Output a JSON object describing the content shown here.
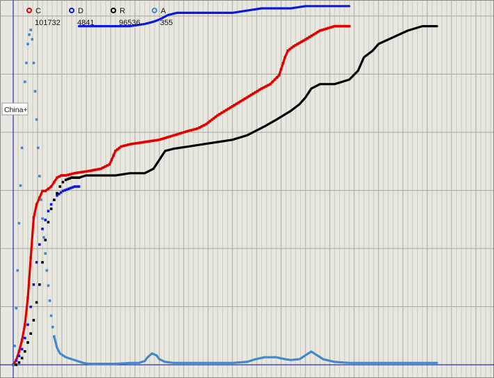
{
  "colors": {
    "background": "#e8e8e0",
    "grid_minor": "#c9c9bd",
    "grid_major": "#a8a8a0",
    "axis": "#2a2ab8",
    "C": "#e00000",
    "D": "#0a18e0",
    "R": "#000000",
    "A": "#4488cc"
  },
  "chart_data": {
    "type": "line",
    "grid": true,
    "legend_position": "top-left",
    "series": [
      {
        "name": "C",
        "total": "101732",
        "style": "line",
        "points": [
          [
            0,
            0
          ],
          [
            2,
            2
          ],
          [
            4,
            6
          ],
          [
            6,
            11
          ],
          [
            8,
            18
          ],
          [
            10,
            30
          ],
          [
            12,
            48
          ],
          [
            14,
            66
          ],
          [
            16,
            72
          ],
          [
            18,
            75
          ],
          [
            20,
            78
          ],
          [
            22,
            78
          ],
          [
            24,
            79
          ],
          [
            26,
            80
          ],
          [
            28,
            82
          ],
          [
            30,
            84
          ],
          [
            33,
            85
          ],
          [
            36,
            85
          ],
          [
            42,
            86
          ],
          [
            52,
            87
          ],
          [
            60,
            88
          ],
          [
            66,
            90
          ],
          [
            70,
            96
          ],
          [
            74,
            98
          ],
          [
            80,
            99
          ],
          [
            90,
            100
          ],
          [
            100,
            101
          ],
          [
            110,
            103
          ],
          [
            120,
            105
          ],
          [
            126,
            106
          ],
          [
            132,
            108
          ],
          [
            140,
            112
          ],
          [
            150,
            116
          ],
          [
            160,
            120
          ],
          [
            170,
            124
          ],
          [
            176,
            126
          ],
          [
            182,
            130
          ],
          [
            186,
            138
          ],
          [
            188,
            141
          ],
          [
            192,
            143
          ],
          [
            200,
            146
          ],
          [
            210,
            150
          ],
          [
            220,
            152
          ],
          [
            230,
            152
          ]
        ]
      },
      {
        "name": "D",
        "total": "4841",
        "style": "line",
        "points": [
          [
            45,
            152
          ],
          [
            50,
            152
          ],
          [
            60,
            152
          ],
          [
            70,
            152
          ],
          [
            80,
            152
          ],
          [
            90,
            153
          ],
          [
            96,
            154
          ],
          [
            100,
            155
          ],
          [
            106,
            157
          ],
          [
            112,
            158
          ],
          [
            120,
            158
          ],
          [
            130,
            158
          ],
          [
            140,
            158
          ],
          [
            150,
            158
          ],
          [
            160,
            159
          ],
          [
            170,
            160
          ],
          [
            180,
            160
          ],
          [
            190,
            160
          ],
          [
            200,
            161
          ],
          [
            210,
            161
          ],
          [
            220,
            161
          ],
          [
            230,
            161
          ]
        ]
      },
      {
        "name": "D",
        "total": "",
        "style": "dots",
        "points": [
          [
            0,
            0
          ],
          [
            2,
            2
          ],
          [
            4,
            4
          ],
          [
            6,
            7
          ],
          [
            8,
            12
          ],
          [
            10,
            18
          ],
          [
            12,
            26
          ],
          [
            14,
            36
          ],
          [
            16,
            46
          ],
          [
            18,
            54
          ],
          [
            20,
            61
          ],
          [
            22,
            65
          ],
          [
            24,
            69
          ],
          [
            26,
            72
          ],
          [
            28,
            74
          ],
          [
            30,
            76
          ],
          [
            34,
            78
          ],
          [
            38,
            79
          ],
          [
            42,
            80
          ],
          [
            45,
            80
          ]
        ]
      },
      {
        "name": "R",
        "total": "96536",
        "style": "dots",
        "points": [
          [
            0,
            0
          ],
          [
            2,
            0
          ],
          [
            4,
            1
          ],
          [
            6,
            3
          ],
          [
            8,
            6
          ],
          [
            10,
            10
          ],
          [
            12,
            14
          ],
          [
            14,
            20
          ],
          [
            16,
            28
          ],
          [
            18,
            36
          ],
          [
            20,
            46
          ],
          [
            22,
            56
          ],
          [
            24,
            64
          ],
          [
            26,
            70
          ],
          [
            28,
            74
          ],
          [
            30,
            77
          ],
          [
            32,
            80
          ],
          [
            34,
            82
          ],
          [
            36,
            83
          ],
          [
            40,
            84
          ],
          [
            45,
            84
          ]
        ]
      },
      {
        "name": "R",
        "total": "",
        "style": "line",
        "points": [
          [
            45,
            84
          ],
          [
            50,
            85
          ],
          [
            60,
            85
          ],
          [
            70,
            85
          ],
          [
            80,
            86
          ],
          [
            90,
            86
          ],
          [
            96,
            88
          ],
          [
            100,
            92
          ],
          [
            104,
            96
          ],
          [
            110,
            97
          ],
          [
            120,
            98
          ],
          [
            130,
            99
          ],
          [
            140,
            100
          ],
          [
            150,
            101
          ],
          [
            160,
            103
          ],
          [
            166,
            105
          ],
          [
            172,
            107
          ],
          [
            180,
            110
          ],
          [
            190,
            114
          ],
          [
            196,
            117
          ],
          [
            200,
            120
          ],
          [
            204,
            124
          ],
          [
            210,
            126
          ],
          [
            220,
            126
          ],
          [
            230,
            128
          ],
          [
            236,
            132
          ],
          [
            240,
            138
          ],
          [
            246,
            141
          ],
          [
            250,
            144
          ],
          [
            260,
            147
          ],
          [
            270,
            150
          ],
          [
            280,
            152
          ],
          [
            290,
            152
          ]
        ]
      },
      {
        "name": "A",
        "total": "355",
        "style": "dots",
        "points": [
          [
            0,
            0
          ],
          [
            1,
            20
          ],
          [
            2,
            60
          ],
          [
            3,
            100
          ],
          [
            4,
            150
          ],
          [
            5,
            190
          ],
          [
            6,
            230
          ],
          [
            7,
            270
          ],
          [
            8,
            300
          ],
          [
            9,
            320
          ],
          [
            10,
            340
          ],
          [
            11,
            350
          ],
          [
            12,
            355
          ],
          [
            13,
            345
          ],
          [
            14,
            320
          ],
          [
            15,
            290
          ],
          [
            16,
            260
          ],
          [
            17,
            230
          ],
          [
            18,
            200
          ],
          [
            19,
            175
          ],
          [
            20,
            155
          ],
          [
            21,
            135
          ],
          [
            22,
            118
          ],
          [
            23,
            100
          ],
          [
            24,
            84
          ],
          [
            25,
            68
          ],
          [
            26,
            52
          ],
          [
            27,
            40
          ],
          [
            28,
            30
          ]
        ]
      },
      {
        "name": "A",
        "total": "",
        "style": "line",
        "points": [
          [
            28,
            30
          ],
          [
            30,
            18
          ],
          [
            32,
            12
          ],
          [
            36,
            8
          ],
          [
            40,
            6
          ],
          [
            44,
            4
          ],
          [
            48,
            2
          ],
          [
            52,
            1
          ],
          [
            60,
            1
          ],
          [
            70,
            1
          ],
          [
            80,
            2
          ],
          [
            86,
            2
          ],
          [
            90,
            4
          ],
          [
            92,
            8
          ],
          [
            95,
            12
          ],
          [
            98,
            10
          ],
          [
            100,
            6
          ],
          [
            104,
            3
          ],
          [
            110,
            2
          ],
          [
            120,
            2
          ],
          [
            130,
            2
          ],
          [
            140,
            2
          ],
          [
            150,
            2
          ],
          [
            160,
            3
          ],
          [
            166,
            6
          ],
          [
            172,
            8
          ],
          [
            180,
            8
          ],
          [
            186,
            6
          ],
          [
            190,
            5
          ],
          [
            196,
            6
          ],
          [
            200,
            10
          ],
          [
            204,
            14
          ],
          [
            208,
            10
          ],
          [
            212,
            6
          ],
          [
            220,
            3
          ],
          [
            230,
            2
          ],
          [
            240,
            2
          ],
          [
            250,
            2
          ],
          [
            260,
            2
          ],
          [
            270,
            2
          ],
          [
            280,
            2
          ],
          [
            290,
            2
          ]
        ]
      }
    ],
    "legend": [
      {
        "name": "C",
        "total": "101732"
      },
      {
        "name": "D",
        "total": "4841"
      },
      {
        "name": "R",
        "total": "96536"
      },
      {
        "name": "A",
        "total": "355"
      }
    ],
    "annotations": [
      {
        "text": "China+"
      }
    ]
  }
}
